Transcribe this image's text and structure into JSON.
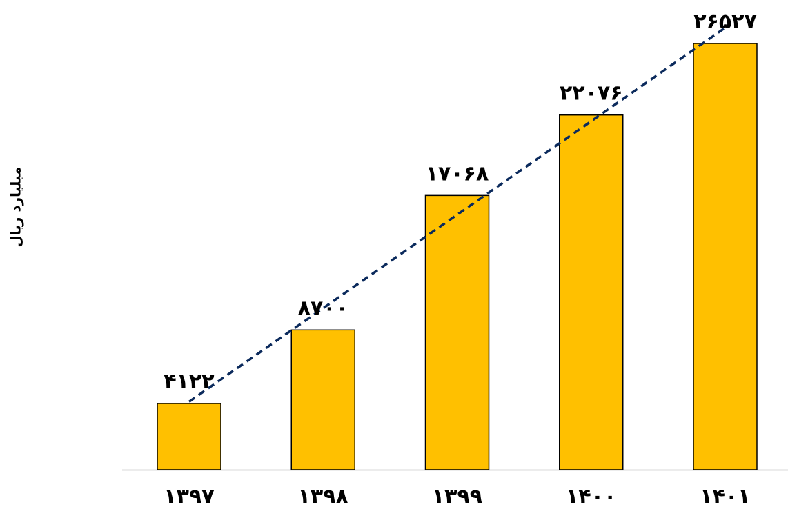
{
  "chart_data": {
    "type": "bar",
    "ylabel": "میلیارد ریال",
    "xlabel": "",
    "categories": [
      "۱۳۹۷",
      "۱۳۹۸",
      "۱۳۹۹",
      "۱۴۰۰",
      "۱۴۰۱"
    ],
    "values": [
      4122,
      8700,
      17068,
      22076,
      26527
    ],
    "data_labels": [
      "۴۱۲۲",
      "۸۷۰۰",
      "۱۷۰۶۸",
      "۲۲۰۷۶",
      "۲۶۵۲۷"
    ],
    "ylim": [
      0,
      26527
    ],
    "grid": false,
    "legend": "none",
    "trendline": {
      "type": "linear",
      "style": "dashed"
    },
    "colors": {
      "bar_fill": "#FFC000",
      "bar_stroke": "#000000",
      "trendline": "#0B2A5C",
      "axis": "#D9D9D9",
      "text": "#000000"
    }
  }
}
